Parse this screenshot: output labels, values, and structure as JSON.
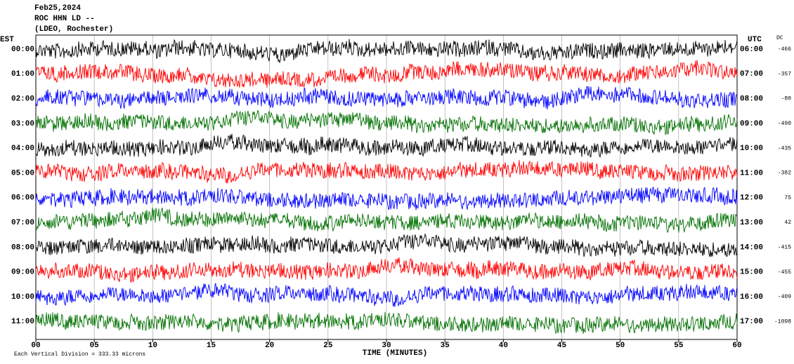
{
  "chart_data": {
    "type": "helicorder",
    "title_lines": [
      "Feb25,2024",
      "ROC HHN LD --",
      "(LDEO, Rochester)"
    ],
    "left_axis_label": "EST",
    "right_axis_label": "UTC",
    "dc_label": "DC",
    "est_times": [
      "00:00",
      "01:00",
      "02:00",
      "03:00",
      "04:00",
      "05:00",
      "06:00",
      "07:00",
      "08:00",
      "09:00",
      "10:00",
      "11:00"
    ],
    "utc_times": [
      "06:00",
      "07:00",
      "08:00",
      "09:00",
      "10:00",
      "11:00",
      "12:00",
      "13:00",
      "14:00",
      "15:00",
      "16:00",
      "17:00"
    ],
    "dc": [
      -466,
      -357,
      -80,
      -490,
      -435,
      -382,
      75,
      42,
      -415,
      -455,
      -409,
      -1098
    ],
    "colors": [
      "#000000",
      "#ff0000",
      "#0000ff",
      "#007000"
    ],
    "xlabel": "TIME (MINUTES)",
    "xlim": [
      0,
      60
    ],
    "xticks": [
      {
        "value": 0,
        "label": "00"
      },
      {
        "value": 5,
        "label": "05"
      },
      10,
      15,
      20,
      25,
      30,
      35,
      40,
      45,
      50,
      55,
      60
    ],
    "grid": true,
    "footnote": "Each Vertical Division = 333.33 microns"
  }
}
